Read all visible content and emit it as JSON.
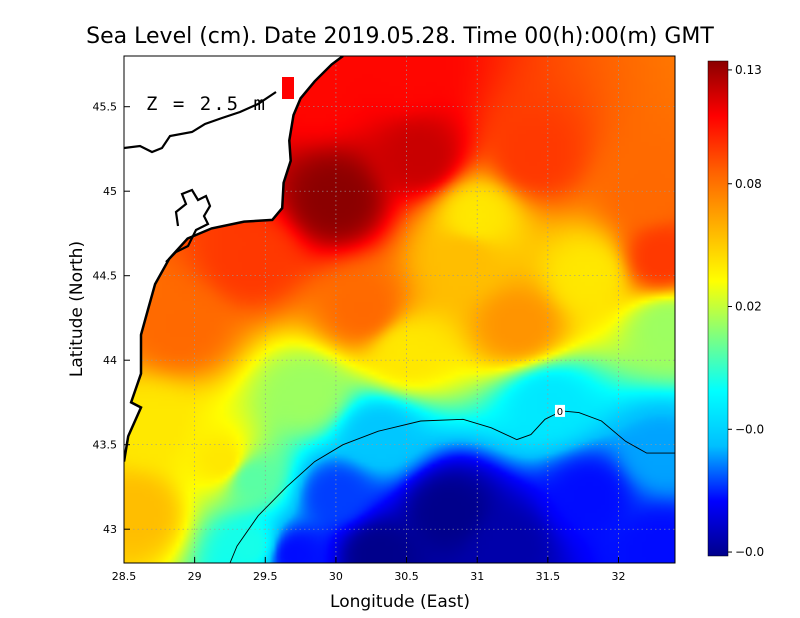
{
  "chart_data": {
    "type": "heatmap",
    "title": "Sea Level (cm). Date 2019.05.28. Time 00(h):00(m) GMT",
    "xlabel": "Longitude (East)",
    "ylabel": "Latitude (North)",
    "annotation": "Z = 2.5 m",
    "xlim": [
      28.5,
      32.4
    ],
    "ylim": [
      42.8,
      45.8
    ],
    "x_ticks": [
      28.5,
      29,
      29.5,
      30,
      30.5,
      31,
      31.5,
      32
    ],
    "x_tick_labels": [
      "28.5",
      "29",
      "29.5",
      "30",
      "30.5",
      "31",
      "31.5",
      "32"
    ],
    "y_ticks": [
      43,
      43.5,
      44,
      44.5,
      45,
      45.5
    ],
    "y_tick_labels": [
      "43",
      "43.5",
      "44",
      "44.5",
      "45",
      "45.5"
    ],
    "grid": true,
    "contour": {
      "level": 0,
      "label": "0"
    },
    "colorbar": {
      "range": [
        -0.04,
        0.13
      ],
      "tick_values": [
        0.13,
        0.08,
        0.02,
        -0.01,
        -0.04
      ],
      "tick_labels": [
        "0.13",
        "0.08",
        "0.02",
        "−0.0",
        "−0.0"
      ],
      "colors": [
        "#00008b",
        "#0000ff",
        "#00bfff",
        "#00ffff",
        "#7fff7f",
        "#ffff00",
        "#ffb000",
        "#ff6000",
        "#ff0000",
        "#8b0000"
      ]
    },
    "field_points": [
      {
        "x": 30.0,
        "y": 44.95,
        "v": 0.13
      },
      {
        "x": 30.6,
        "y": 45.2,
        "v": 0.12
      },
      {
        "x": 29.9,
        "y": 45.6,
        "v": 0.11
      },
      {
        "x": 30.5,
        "y": 45.7,
        "v": 0.11
      },
      {
        "x": 29.4,
        "y": 44.6,
        "v": 0.1
      },
      {
        "x": 31.4,
        "y": 45.2,
        "v": 0.1
      },
      {
        "x": 32.2,
        "y": 45.0,
        "v": 0.09
      },
      {
        "x": 32.3,
        "y": 44.6,
        "v": 0.1
      },
      {
        "x": 28.9,
        "y": 44.2,
        "v": 0.09
      },
      {
        "x": 30.2,
        "y": 44.3,
        "v": 0.09
      },
      {
        "x": 31.3,
        "y": 44.2,
        "v": 0.08
      },
      {
        "x": 30.9,
        "y": 44.6,
        "v": 0.07
      },
      {
        "x": 31.0,
        "y": 44.85,
        "v": 0.06
      },
      {
        "x": 31.8,
        "y": 44.5,
        "v": 0.06
      },
      {
        "x": 32.35,
        "y": 44.2,
        "v": 0.04
      },
      {
        "x": 28.7,
        "y": 43.6,
        "v": 0.06
      },
      {
        "x": 29.2,
        "y": 43.4,
        "v": 0.06
      },
      {
        "x": 28.6,
        "y": 43.1,
        "v": 0.07
      },
      {
        "x": 30.5,
        "y": 44.05,
        "v": 0.06
      },
      {
        "x": 29.8,
        "y": 43.8,
        "v": 0.04
      },
      {
        "x": 29.4,
        "y": 43.3,
        "v": 0.03
      },
      {
        "x": 29.4,
        "y": 42.9,
        "v": 0.02
      },
      {
        "x": 30.3,
        "y": 43.55,
        "v": 0.0
      },
      {
        "x": 31.5,
        "y": 43.75,
        "v": 0.01
      },
      {
        "x": 32.3,
        "y": 43.45,
        "v": -0.005
      },
      {
        "x": 30.0,
        "y": 43.2,
        "v": -0.015
      },
      {
        "x": 31.8,
        "y": 43.2,
        "v": -0.02
      },
      {
        "x": 30.8,
        "y": 43.1,
        "v": -0.04
      },
      {
        "x": 30.3,
        "y": 42.85,
        "v": -0.04
      },
      {
        "x": 31.2,
        "y": 42.9,
        "v": -0.035
      },
      {
        "x": 29.7,
        "y": 42.85,
        "v": -0.02
      },
      {
        "x": 32.3,
        "y": 42.9,
        "v": -0.02
      }
    ],
    "zero_contour": [
      [
        29.25,
        42.8
      ],
      [
        29.3,
        42.9
      ],
      [
        29.45,
        43.08
      ],
      [
        29.65,
        43.25
      ],
      [
        29.85,
        43.4
      ],
      [
        30.05,
        43.5
      ],
      [
        30.3,
        43.58
      ],
      [
        30.6,
        43.64
      ],
      [
        30.9,
        43.65
      ],
      [
        31.1,
        43.6
      ],
      [
        31.28,
        43.53
      ],
      [
        31.38,
        43.56
      ],
      [
        31.48,
        43.65
      ],
      [
        31.6,
        43.7
      ],
      [
        31.72,
        43.69
      ],
      [
        31.88,
        43.64
      ],
      [
        32.05,
        43.52
      ],
      [
        32.2,
        43.45
      ],
      [
        32.4,
        43.45
      ]
    ],
    "coastline": [
      [
        28.5,
        43.4
      ],
      [
        28.53,
        43.55
      ],
      [
        28.62,
        43.72
      ],
      [
        28.55,
        43.75
      ],
      [
        28.62,
        43.92
      ],
      [
        28.62,
        44.15
      ],
      [
        28.67,
        44.3
      ],
      [
        28.72,
        44.45
      ],
      [
        28.82,
        44.6
      ],
      [
        28.95,
        44.72
      ],
      [
        29.12,
        44.78
      ],
      [
        29.35,
        44.82
      ],
      [
        29.55,
        44.83
      ],
      [
        29.62,
        44.9
      ],
      [
        29.63,
        45.05
      ],
      [
        29.68,
        45.18
      ],
      [
        29.67,
        45.3
      ],
      [
        29.7,
        45.45
      ],
      [
        29.75,
        45.55
      ],
      [
        29.85,
        45.65
      ],
      [
        29.97,
        45.75
      ],
      [
        30.05,
        45.8
      ]
    ]
  }
}
